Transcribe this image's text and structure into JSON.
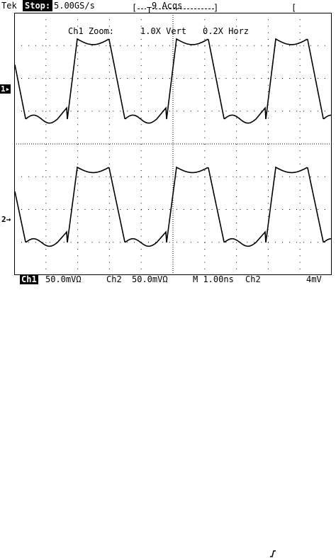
{
  "topbar": {
    "brand": "Tek",
    "status": "Stop:",
    "sample_rate": "5.00GS/s",
    "acquisitions": "9 Acqs",
    "trigger_marker": "T"
  },
  "overlay": {
    "zoom_label": "Ch1 Zoom:",
    "vert_zoom": "1.0X Vert",
    "horz_zoom": "0.2X Horz"
  },
  "markers": {
    "ch1": "1▸",
    "ch2": "2→"
  },
  "bottombar": {
    "ch1_label": "Ch1",
    "ch1_scale": "50.0mVΩ",
    "ch2_label": "Ch2",
    "ch2_scale": "50.0mVΩ",
    "timebase": "M 1.00ns",
    "trigger_source": "Ch2",
    "trigger_slope_icon": "rising-edge",
    "trigger_level": "4mV"
  }
}
